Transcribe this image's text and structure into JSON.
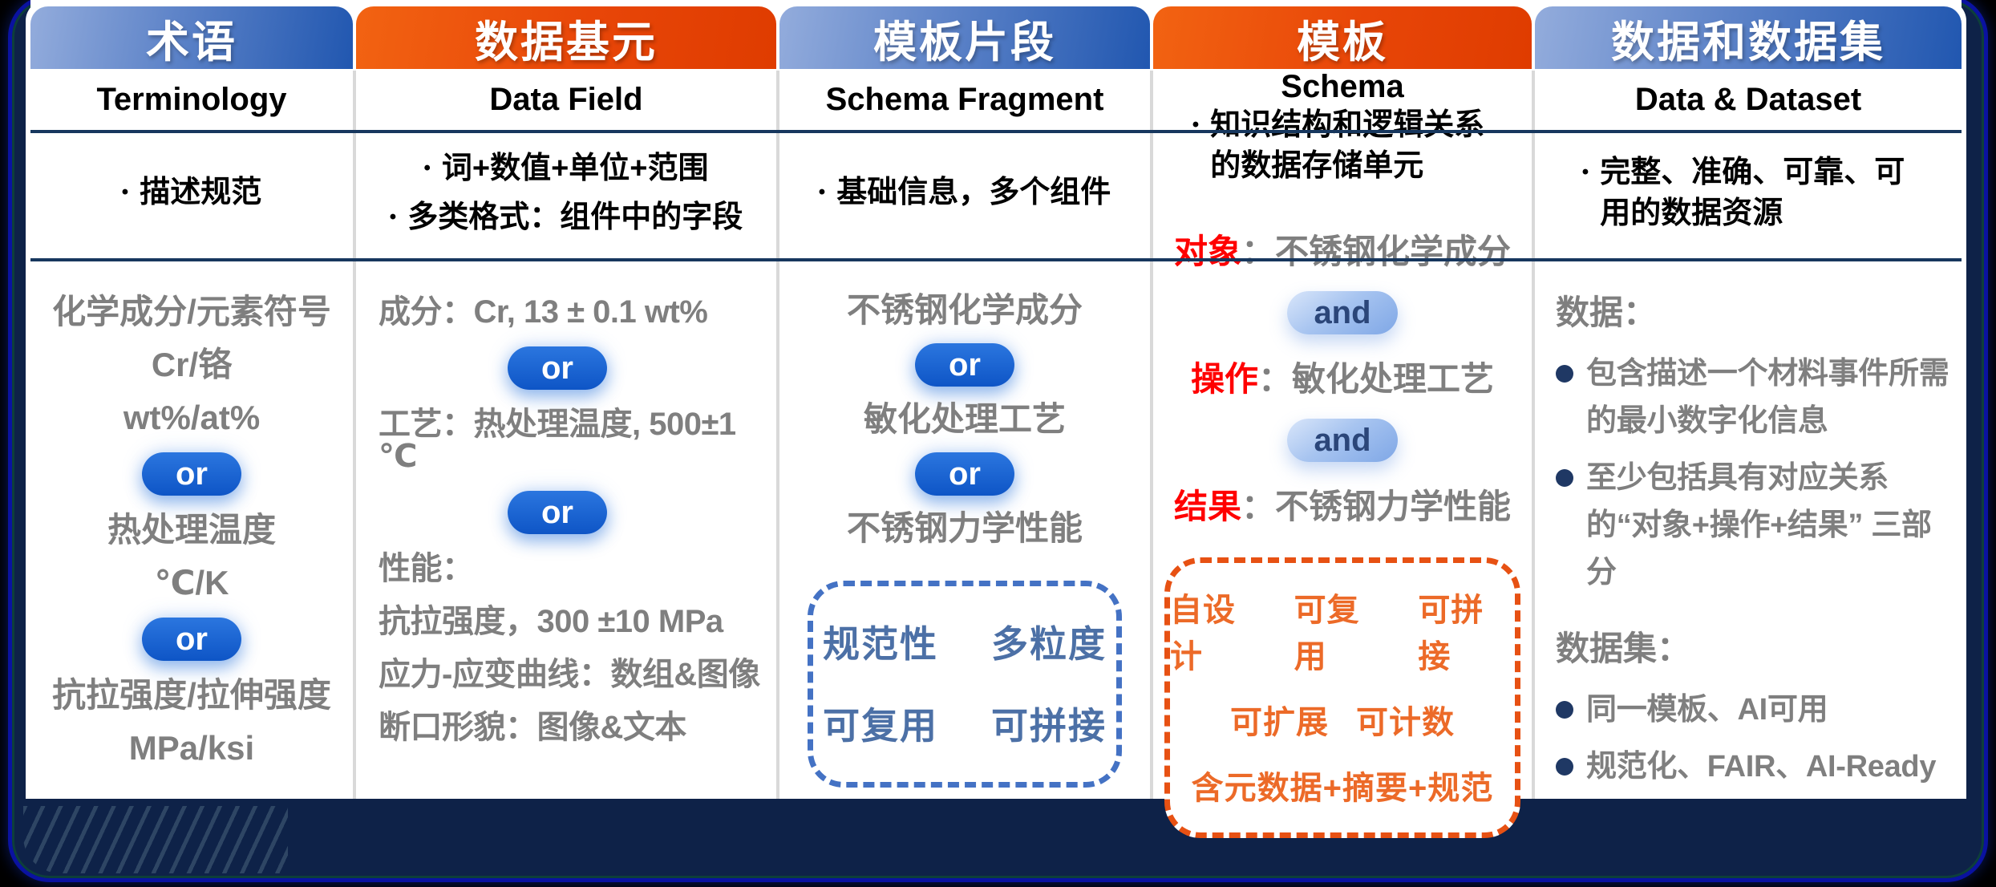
{
  "ui": {
    "bullet": "•",
    "or_label": "or",
    "and_label": "and"
  },
  "colors": {
    "background": "#000000",
    "card_fill": "#0E2248",
    "card_border": "#0A12A0",
    "header_blue_start": "#93ACDC",
    "header_blue_end": "#2157B0",
    "header_orange_start": "#F26312",
    "header_orange_end": "#DF3C00",
    "separator_navy": "#17375E",
    "column_divider": "#D9D9D9",
    "body_text_gray": "#7F7F7F",
    "accent_red": "#FF0000",
    "or_pill_blue": "#1566D6",
    "and_pill_bg": "#A7C4F0",
    "and_pill_text": "#2B4679",
    "dashed_box_blue": "#4472C4",
    "dashed_box_blue_text": "#4C70A6",
    "dashed_box_orange": "#E75113",
    "dashed_box_orange_text": "#EC6A28",
    "bullet_dot_navy": "#1F3864"
  },
  "columns": [
    {
      "title_zh": "术语",
      "title_en": "Terminology",
      "description": [
        "描述规范"
      ],
      "items": [
        "化学成分/元素符号",
        "Cr/铬",
        "wt%/at%",
        "热处理温度",
        "℃/K",
        "抗拉强度/拉伸强度",
        "MPa/ksi"
      ]
    },
    {
      "title_zh": "数据基元",
      "title_en": "Data Field",
      "description": [
        "词+数值+单位+范围",
        "多类格式：组件中的字段"
      ],
      "items": [
        "成分：Cr, 13 ± 0.1 wt%",
        "工艺：热处理温度, 500±1 ℃",
        "性能：",
        "抗拉强度，300 ±10 MPa",
        "应力-应变曲线：数组&图像",
        "断口形貌：图像&文本"
      ]
    },
    {
      "title_zh": "模板片段",
      "title_en": "Schema Fragment",
      "description": [
        "基础信息，多个组件"
      ],
      "items": [
        "不锈钢化学成分",
        "敏化处理工艺",
        "不锈钢力学性能"
      ],
      "box": [
        [
          "规范性",
          "多粒度"
        ],
        [
          "可复用",
          "可拼接"
        ]
      ]
    },
    {
      "title_zh": "模板",
      "title_en": "Schema",
      "description": [
        "知识结构和逻辑关系的数据存储单元"
      ],
      "rows": [
        {
          "label": "对象",
          "sep": "：",
          "value": "不锈钢化学成分"
        },
        {
          "label": "操作",
          "sep": "：",
          "value": "敏化处理工艺"
        },
        {
          "label": "结果",
          "sep": "：",
          "value": "不锈钢力学性能"
        }
      ],
      "box": [
        [
          "自设计",
          "可复用",
          "可拼接"
        ],
        [
          "可扩展",
          "可计数"
        ],
        [
          "含元数据+摘要+规范"
        ]
      ]
    },
    {
      "title_zh": "数据和数据集",
      "title_en": "Data & Dataset",
      "description": [
        "完整、准确、可靠、可用的数据资源"
      ],
      "sections": [
        {
          "header": "数据：",
          "bullets": [
            "包含描述一个材料事件所需的最小数字化信息",
            "至少包括具有对应关系的“对象+操作+结果” 三部分"
          ]
        },
        {
          "header": "数据集：",
          "bullets": [
            "同一模板、AI可用",
            "规范化、FAIR、AI-Ready"
          ]
        }
      ]
    }
  ]
}
